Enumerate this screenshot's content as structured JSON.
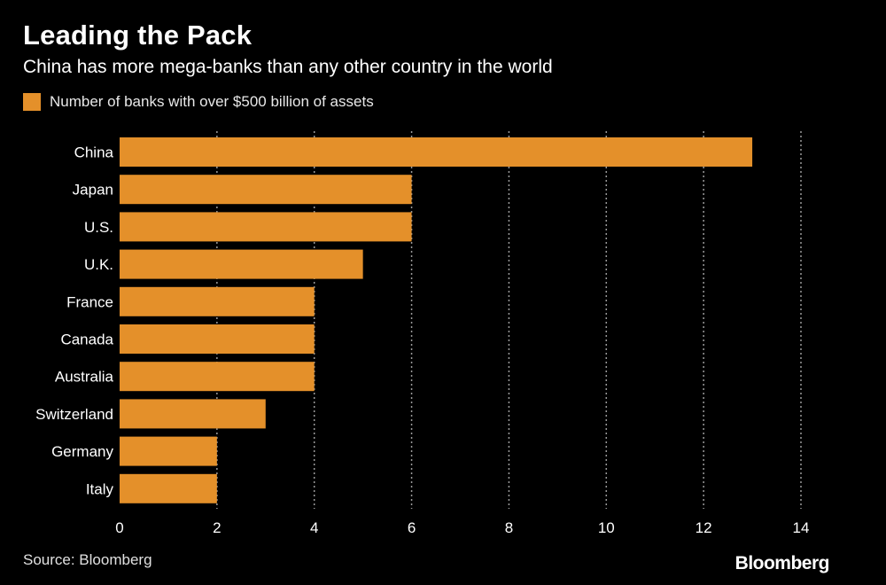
{
  "title": "Leading the Pack",
  "subtitle": "China has more mega-banks than any other country in the world",
  "legend_label": "Number of banks with over $500 billion of assets",
  "source": "Source: Bloomberg",
  "logo": "Bloomberg",
  "colors": {
    "background": "#000000",
    "bar": "#E4902A",
    "grid": "#9a9a9a",
    "text": "#ffffff"
  },
  "chart_data": {
    "type": "bar",
    "orientation": "horizontal",
    "title": "Leading the Pack",
    "subtitle": "China has more mega-banks than any other country in the world",
    "categories": [
      "China",
      "Japan",
      "U.S.",
      "U.K.",
      "France",
      "Canada",
      "Australia",
      "Switzerland",
      "Germany",
      "Italy"
    ],
    "series": [
      {
        "name": "Number of banks with over $500 billion of assets",
        "values": [
          13,
          6,
          6,
          5,
          4,
          4,
          4,
          3,
          2,
          2
        ]
      }
    ],
    "xlim": [
      0,
      14
    ],
    "xticks": [
      0,
      2,
      4,
      6,
      8,
      10,
      12,
      14
    ],
    "grid": "vertical dotted",
    "legend": "top-left"
  }
}
